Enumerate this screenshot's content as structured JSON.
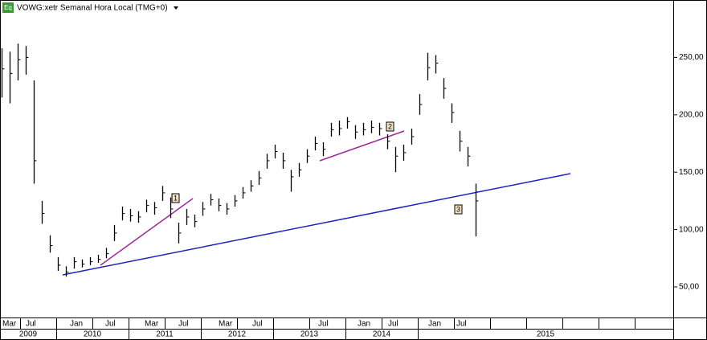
{
  "chart_data": {
    "type": "ohlc",
    "title": "VOWG:xetr Semanal Hora Local (TMG+0)",
    "badge": "Eq",
    "color": "#000000",
    "ylim": [
      23.4,
      300
    ],
    "yticks": [
      {
        "value": 50,
        "label": "50,00"
      },
      {
        "value": 100,
        "label": "100,00"
      },
      {
        "value": 150,
        "label": "150,00"
      },
      {
        "value": 200,
        "label": "200,00"
      },
      {
        "value": 250,
        "label": "250,00"
      }
    ],
    "month_labels": [
      "Mar",
      "Jul",
      "Jan",
      "Jul",
      "Mar",
      "Jul",
      "Mar",
      "Jul",
      "Jul",
      "Jan",
      "Jul",
      "Jan",
      "Jul"
    ],
    "year_labels": [
      "2009",
      "2010",
      "2011",
      "2012",
      "2013",
      "2014",
      "2015"
    ],
    "annotations": [
      "1",
      "2",
      "3"
    ],
    "close": [
      240,
      236,
      248,
      250,
      160,
      114,
      86,
      69,
      63,
      72,
      70,
      72,
      74,
      79,
      97,
      114,
      112,
      111,
      121,
      119,
      132,
      118,
      97,
      111,
      107,
      118,
      126,
      121,
      118,
      125,
      132,
      138,
      145,
      160,
      168,
      160,
      146,
      152,
      164,
      175,
      170,
      187,
      188,
      194,
      185,
      187,
      189,
      188,
      177,
      164,
      167,
      181,
      209,
      241,
      245,
      223,
      202,
      177,
      164,
      125
    ],
    "high": [
      258,
      255,
      262,
      260,
      230,
      125,
      95,
      76,
      68,
      76,
      74,
      76,
      78,
      84,
      104,
      120,
      118,
      116,
      126,
      124,
      138,
      128,
      106,
      118,
      113,
      124,
      131,
      127,
      123,
      130,
      137,
      143,
      151,
      166,
      174,
      167,
      152,
      158,
      170,
      181,
      176,
      193,
      195,
      198,
      191,
      193,
      195,
      193,
      183,
      172,
      174,
      188,
      218,
      254,
      252,
      232,
      210,
      186,
      172,
      140
    ],
    "low": [
      215,
      210,
      230,
      235,
      140,
      105,
      80,
      64,
      59,
      66,
      67,
      69,
      71,
      75,
      90,
      108,
      107,
      106,
      115,
      113,
      125,
      110,
      88,
      104,
      102,
      112,
      121,
      116,
      113,
      120,
      127,
      133,
      139,
      153,
      162,
      153,
      133,
      146,
      158,
      169,
      164,
      181,
      182,
      188,
      179,
      182,
      184,
      182,
      170,
      150,
      160,
      174,
      200,
      230,
      236,
      214,
      193,
      168,
      155,
      94
    ]
  }
}
